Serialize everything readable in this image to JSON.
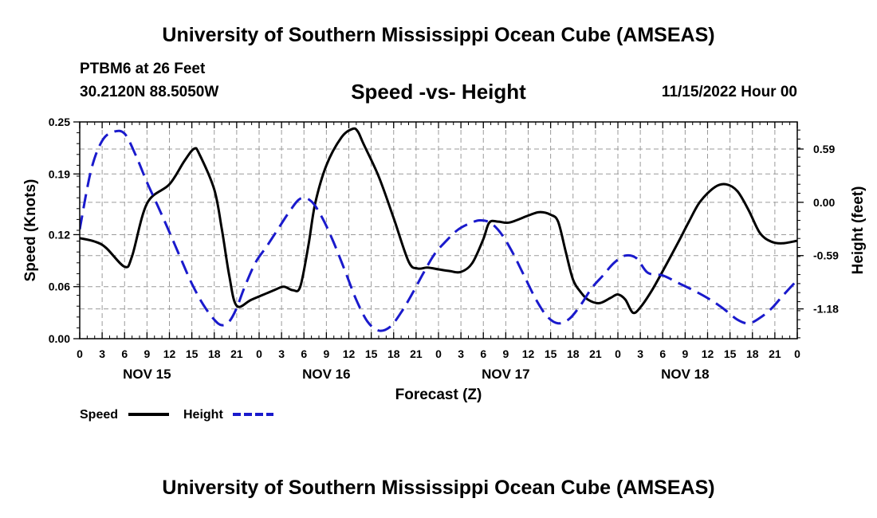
{
  "header": {
    "title": "University of Southern Mississippi Ocean Cube (AMSEAS)",
    "station": "PTBM6 at 26 Feet",
    "latlon": "30.2120N  88.5050W",
    "subtitle": "Speed -vs- Height",
    "datetime": "11/15/2022 Hour 00",
    "footer_title": "University of Southern Mississippi Ocean Cube (AMSEAS)"
  },
  "chart_data": {
    "type": "line",
    "title": "Speed -vs- Height",
    "xlabel": "Forecast (Z)",
    "ylabel_left": "Speed (Knots)",
    "ylabel_right": "Height (feet)",
    "x_range_hours": [
      0,
      96
    ],
    "x_tick_step_hours": 3,
    "x_tick_labels": [
      "0",
      "3",
      "6",
      "9",
      "12",
      "15",
      "18",
      "21",
      "0",
      "3",
      "6",
      "9",
      "12",
      "15",
      "18",
      "21",
      "0",
      "3",
      "6",
      "9",
      "12",
      "15",
      "18",
      "21",
      "0",
      "3",
      "6",
      "9",
      "12",
      "15",
      "18",
      "21",
      "0"
    ],
    "day_labels": [
      {
        "label": "NOV 15",
        "hour": 9
      },
      {
        "label": "NOV 16",
        "hour": 33
      },
      {
        "label": "NOV 17",
        "hour": 57
      },
      {
        "label": "NOV 18",
        "hour": 81
      }
    ],
    "y_left": {
      "ticks": [
        "0.00",
        "0.06",
        "0.12",
        "0.19",
        "0.25"
      ],
      "range": [
        0,
        0.25
      ]
    },
    "y_right": {
      "ticks": [
        "0.59",
        "0.00",
        "-0.59",
        "-1.18"
      ],
      "tick_values": [
        0.59,
        0.0,
        -0.59,
        -1.18
      ],
      "range": [
        -1.51,
        0.89
      ]
    },
    "series": [
      {
        "name": "Speed",
        "color": "#000000",
        "dash": "solid",
        "axis": "left",
        "points": [
          [
            0,
            0.116
          ],
          [
            2,
            0.112
          ],
          [
            3.5,
            0.105
          ],
          [
            6,
            0.083
          ],
          [
            7,
            0.095
          ],
          [
            9,
            0.156
          ],
          [
            12,
            0.178
          ],
          [
            14,
            0.205
          ],
          [
            15.3,
            0.219
          ],
          [
            16,
            0.213
          ],
          [
            18,
            0.172
          ],
          [
            19,
            0.127
          ],
          [
            20,
            0.073
          ],
          [
            21,
            0.038
          ],
          [
            23,
            0.045
          ],
          [
            26,
            0.056
          ],
          [
            27.3,
            0.06
          ],
          [
            28.5,
            0.056
          ],
          [
            29.5,
            0.06
          ],
          [
            30.6,
            0.108
          ],
          [
            31.5,
            0.156
          ],
          [
            33,
            0.2
          ],
          [
            35,
            0.232
          ],
          [
            36.5,
            0.242
          ],
          [
            37.2,
            0.239
          ],
          [
            38,
            0.224
          ],
          [
            40,
            0.187
          ],
          [
            42,
            0.139
          ],
          [
            44,
            0.089
          ],
          [
            45.2,
            0.081
          ],
          [
            46.5,
            0.082
          ],
          [
            48,
            0.08
          ],
          [
            49.5,
            0.078
          ],
          [
            51,
            0.077
          ],
          [
            52.5,
            0.087
          ],
          [
            54,
            0.115
          ],
          [
            54.8,
            0.134
          ],
          [
            56,
            0.135
          ],
          [
            57.5,
            0.134
          ],
          [
            60,
            0.142
          ],
          [
            61.5,
            0.146
          ],
          [
            63,
            0.143
          ],
          [
            64,
            0.135
          ],
          [
            65,
            0.101
          ],
          [
            66,
            0.068
          ],
          [
            67,
            0.054
          ],
          [
            68,
            0.045
          ],
          [
            69.5,
            0.041
          ],
          [
            71,
            0.047
          ],
          [
            72,
            0.051
          ],
          [
            73,
            0.045
          ],
          [
            74,
            0.03
          ],
          [
            75,
            0.036
          ],
          [
            76.5,
            0.055
          ],
          [
            78,
            0.078
          ],
          [
            80,
            0.11
          ],
          [
            81.5,
            0.135
          ],
          [
            83,
            0.158
          ],
          [
            85,
            0.175
          ],
          [
            86.5,
            0.178
          ],
          [
            88,
            0.17
          ],
          [
            89.5,
            0.148
          ],
          [
            91,
            0.122
          ],
          [
            92.5,
            0.112
          ],
          [
            94,
            0.11
          ],
          [
            96,
            0.113
          ]
        ]
      },
      {
        "name": "Height",
        "color": "#1a1acc",
        "dash": "dashed",
        "axis": "right",
        "points": [
          [
            0,
            -0.3
          ],
          [
            1.5,
            0.35
          ],
          [
            3,
            0.68
          ],
          [
            4.5,
            0.78
          ],
          [
            6,
            0.76
          ],
          [
            7.5,
            0.52
          ],
          [
            9,
            0.22
          ],
          [
            10.5,
            -0.05
          ],
          [
            12,
            -0.33
          ],
          [
            13.5,
            -0.62
          ],
          [
            15,
            -0.9
          ],
          [
            16.5,
            -1.13
          ],
          [
            18,
            -1.3
          ],
          [
            19,
            -1.36
          ],
          [
            20,
            -1.32
          ],
          [
            21,
            -1.17
          ],
          [
            22,
            -0.95
          ],
          [
            23.5,
            -0.67
          ],
          [
            25,
            -0.49
          ],
          [
            26.5,
            -0.3
          ],
          [
            28,
            -0.11
          ],
          [
            29.5,
            0.04
          ],
          [
            31,
            0.01
          ],
          [
            32.5,
            -0.18
          ],
          [
            34,
            -0.45
          ],
          [
            35.5,
            -0.76
          ],
          [
            37,
            -1.08
          ],
          [
            38.5,
            -1.32
          ],
          [
            40,
            -1.42
          ],
          [
            41.5,
            -1.38
          ],
          [
            43,
            -1.22
          ],
          [
            44.5,
            -1.01
          ],
          [
            46,
            -0.78
          ],
          [
            47.5,
            -0.57
          ],
          [
            49,
            -0.43
          ],
          [
            50.5,
            -0.31
          ],
          [
            52,
            -0.24
          ],
          [
            53.5,
            -0.2
          ],
          [
            55,
            -0.23
          ],
          [
            56.5,
            -0.36
          ],
          [
            58,
            -0.57
          ],
          [
            59.5,
            -0.82
          ],
          [
            61,
            -1.07
          ],
          [
            62.5,
            -1.26
          ],
          [
            64,
            -1.34
          ],
          [
            65.5,
            -1.29
          ],
          [
            67,
            -1.14
          ],
          [
            68.5,
            -0.95
          ],
          [
            70,
            -0.81
          ],
          [
            71.5,
            -0.67
          ],
          [
            73,
            -0.59
          ],
          [
            74.5,
            -0.62
          ],
          [
            76,
            -0.78
          ],
          [
            78,
            -0.81
          ],
          [
            80,
            -0.89
          ],
          [
            82,
            -0.97
          ],
          [
            84,
            -1.06
          ],
          [
            86,
            -1.17
          ],
          [
            88,
            -1.3
          ],
          [
            89.5,
            -1.34
          ],
          [
            91,
            -1.28
          ],
          [
            92.5,
            -1.18
          ],
          [
            94,
            -1.04
          ],
          [
            96,
            -0.86
          ]
        ]
      }
    ],
    "legend": [
      {
        "label": "Speed",
        "color": "#000000",
        "dash": "solid"
      },
      {
        "label": "Height",
        "color": "#1a1acc",
        "dash": "dashed"
      }
    ],
    "grid": true,
    "legend_position": "bottom-left"
  }
}
